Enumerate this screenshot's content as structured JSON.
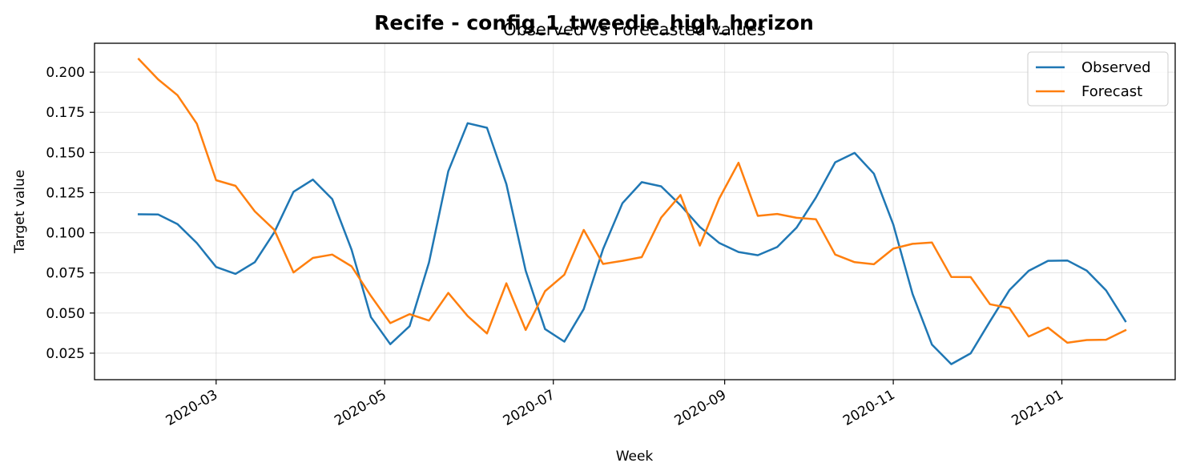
{
  "chart_data": {
    "type": "line",
    "title": "Recife - config_1_tweedie_high_horizon",
    "subtitle": "Observed vs Forecasted values",
    "xlabel": "Week",
    "ylabel": "Target value",
    "grid": true,
    "legend_position": "top-right",
    "xlim": [
      "2020-01-17",
      "2021-02-11"
    ],
    "ylim": [
      0.0085,
      0.218
    ],
    "x_ticks": [
      "2020-03",
      "2020-05",
      "2020-07",
      "2020-09",
      "2020-11",
      "2021-01"
    ],
    "x_tick_dates": [
      "2020-03-01",
      "2020-05-01",
      "2020-07-01",
      "2020-09-01",
      "2020-11-01",
      "2021-01-01"
    ],
    "y_ticks": [
      "0.025",
      "0.050",
      "0.075",
      "0.100",
      "0.125",
      "0.150",
      "0.175",
      "0.200"
    ],
    "y_tick_values": [
      0.025,
      0.05,
      0.075,
      0.1,
      0.125,
      0.15,
      0.175,
      0.2
    ],
    "x": [
      "2020-02-02",
      "2020-02-09",
      "2020-02-16",
      "2020-02-23",
      "2020-03-01",
      "2020-03-08",
      "2020-03-15",
      "2020-03-22",
      "2020-03-29",
      "2020-04-05",
      "2020-04-12",
      "2020-04-19",
      "2020-04-26",
      "2020-05-03",
      "2020-05-10",
      "2020-05-17",
      "2020-05-24",
      "2020-05-31",
      "2020-06-07",
      "2020-06-14",
      "2020-06-21",
      "2020-06-28",
      "2020-07-05",
      "2020-07-12",
      "2020-07-19",
      "2020-07-26",
      "2020-08-02",
      "2020-08-09",
      "2020-08-16",
      "2020-08-23",
      "2020-08-30",
      "2020-09-06",
      "2020-09-13",
      "2020-09-20",
      "2020-09-27",
      "2020-10-04",
      "2020-10-11",
      "2020-10-18",
      "2020-10-25",
      "2020-11-01",
      "2020-11-08",
      "2020-11-15",
      "2020-11-22",
      "2020-11-29",
      "2020-12-06",
      "2020-12-13",
      "2020-12-20",
      "2020-12-27",
      "2021-01-03",
      "2021-01-10",
      "2021-01-17",
      "2021-01-24"
    ],
    "series": [
      {
        "name": "Observed",
        "color": "#1f77b4",
        "values": [
          0.1115,
          0.1114,
          0.1054,
          0.0936,
          0.0787,
          0.0744,
          0.0817,
          0.1002,
          0.1255,
          0.1331,
          0.121,
          0.0894,
          0.0475,
          0.0306,
          0.0418,
          0.0815,
          0.1383,
          0.1682,
          0.1654,
          0.1303,
          0.0764,
          0.04,
          0.0322,
          0.0525,
          0.0898,
          0.1184,
          0.1315,
          0.1289,
          0.1172,
          0.1036,
          0.0937,
          0.088,
          0.086,
          0.0911,
          0.1031,
          0.1219,
          0.1439,
          0.1497,
          0.1368,
          0.1051,
          0.0618,
          0.0303,
          0.0182,
          0.0249,
          0.0448,
          0.0642,
          0.0763,
          0.0825,
          0.0827,
          0.0764,
          0.0641,
          0.0449
        ]
      },
      {
        "name": "Forecast",
        "color": "#ff7f0e",
        "values": [
          0.2081,
          0.1955,
          0.1857,
          0.1679,
          0.1327,
          0.1292,
          0.1133,
          0.1019,
          0.0753,
          0.0843,
          0.0864,
          0.0791,
          0.0607,
          0.0437,
          0.0493,
          0.0453,
          0.0625,
          0.0481,
          0.0373,
          0.0685,
          0.0395,
          0.0636,
          0.0739,
          0.1018,
          0.0806,
          0.0825,
          0.0848,
          0.1094,
          0.1235,
          0.092,
          0.1212,
          0.1436,
          0.1105,
          0.1117,
          0.1093,
          0.1084,
          0.0864,
          0.0817,
          0.0804,
          0.0901,
          0.0931,
          0.0939,
          0.0725,
          0.0724,
          0.0555,
          0.0531,
          0.0354,
          0.0409,
          0.0315,
          0.0332,
          0.0334,
          0.0393
        ]
      }
    ]
  }
}
